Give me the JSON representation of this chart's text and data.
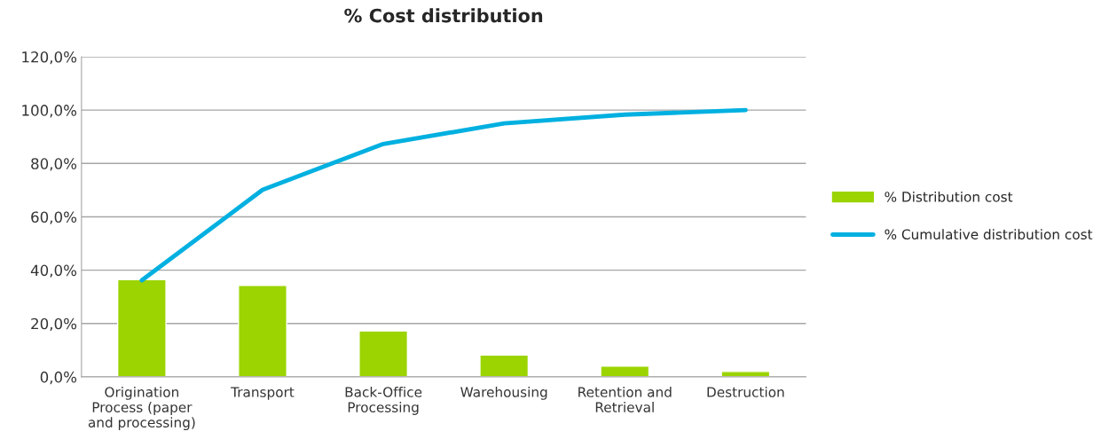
{
  "chart_data": {
    "type": "bar",
    "title": "% Cost distribution",
    "categories": [
      "Origination\nProcess (paper\nand processing)",
      "Transport",
      "Back-Office\nProcessing",
      "Warehousing",
      "Retention and\nRetrieval",
      "Destruction"
    ],
    "series": [
      {
        "name": "% Distribution cost",
        "color": "#9bd400",
        "values": [
          36.4,
          34.3,
          17.2,
          8.2,
          4.0,
          2.0
        ]
      },
      {
        "name": "% Cumulative distribution cost",
        "type": "line",
        "color": "#00b0e0",
        "values": [
          36.2,
          70.1,
          87.3,
          95.0,
          98.3,
          100.0
        ]
      }
    ],
    "ylim": [
      0,
      120
    ],
    "yticks": [
      {
        "value": 0,
        "label": "0,0%"
      },
      {
        "value": 20,
        "label": "20,0%"
      },
      {
        "value": 40,
        "label": "40,0%"
      },
      {
        "value": 60,
        "label": "60,0%"
      },
      {
        "value": 80,
        "label": "80,0%"
      },
      {
        "value": 100,
        "label": "100,0%"
      },
      {
        "value": 120,
        "label": "120,0%"
      }
    ],
    "grid": "y",
    "legend": "right"
  }
}
